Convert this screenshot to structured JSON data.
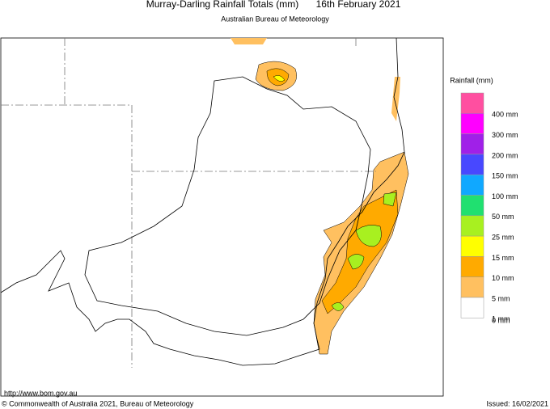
{
  "title": "Murray-Darling Rainfall Totals (mm)",
  "date": "16th February 2021",
  "subtitle": "Australian Bureau of Meteorology",
  "legend": {
    "title": "Rainfall (mm)",
    "colors": [
      "#ff4fa0",
      "#ff00ff",
      "#a020e8",
      "#4848ff",
      "#10a8ff",
      "#20e070",
      "#a8f020",
      "#ffff00",
      "#ffaa00",
      "#ffc060",
      "#ffffff"
    ],
    "labels": [
      "400 mm",
      "300 mm",
      "200 mm",
      "150 mm",
      "100 mm",
      "50 mm",
      "25 mm",
      "15 mm",
      "10 mm",
      "5 mm",
      "1 mm",
      "0 mm"
    ]
  },
  "url": "http://www.bom.gov.au",
  "copyright": "© Commonwealth of Australia 2021, Bureau of Meteorology",
  "issued": "Issued: 16/02/2021"
}
